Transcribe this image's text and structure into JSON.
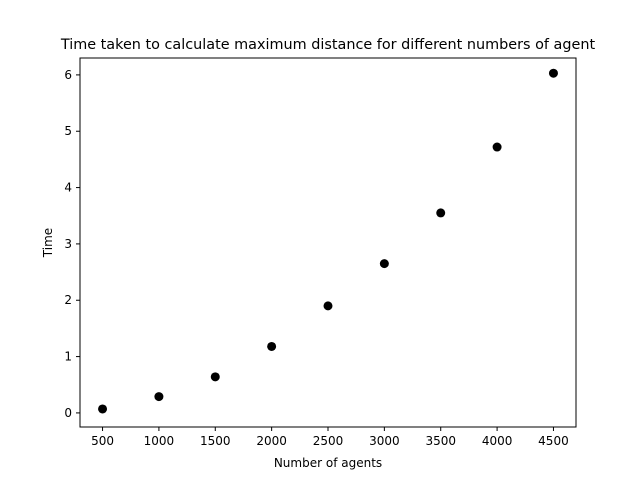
{
  "chart_data": {
    "type": "scatter",
    "title": "Time taken to calculate maximum distance for different numbers of agent",
    "xlabel": "Number of agents",
    "ylabel": "Time",
    "xlim": [
      300,
      4700
    ],
    "ylim": [
      -0.25,
      6.3
    ],
    "xticks": [
      500,
      1000,
      1500,
      2000,
      2500,
      3000,
      3500,
      4000,
      4500
    ],
    "yticks": [
      0,
      1,
      2,
      3,
      4,
      5,
      6
    ],
    "grid": false,
    "series": [
      {
        "color": "#000000",
        "x": [
          500,
          1000,
          1500,
          2000,
          2500,
          3000,
          3500,
          4000,
          4500
        ],
        "y": [
          0.07,
          0.29,
          0.64,
          1.18,
          1.9,
          2.65,
          3.55,
          4.72,
          6.03
        ]
      }
    ]
  }
}
